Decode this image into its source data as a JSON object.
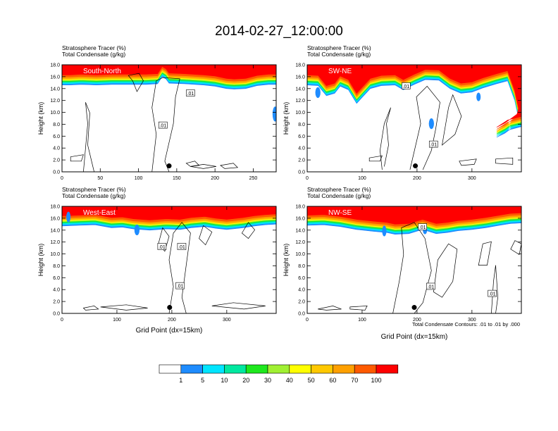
{
  "figure": {
    "title": "2014-02-27_12:00:00",
    "footnote": "Total Condensate Contours: .01 to .01 by .000"
  },
  "colors": {
    "tracer_levels": [
      "#ffffff",
      "#1e8cff",
      "#00e5ff",
      "#00e8a0",
      "#1ee81e",
      "#a0f032",
      "#ffff00",
      "#ffc800",
      "#ffa000",
      "#ff5a00",
      "#ff0000"
    ],
    "contour": "#000000"
  },
  "colorbar": {
    "labels": [
      "1",
      "5",
      "10",
      "20",
      "30",
      "40",
      "50",
      "60",
      "70",
      "100"
    ]
  },
  "chart_data": [
    {
      "type": "heatmap",
      "title_left_1": "Stratosphere Tracer   (%)",
      "title_left_2": "Total Condensate   (g/kg)",
      "region_label": "South-North",
      "xlabel": "",
      "ylabel": "Height (km)",
      "xlim": [
        0,
        280
      ],
      "ylim": [
        0,
        18
      ],
      "xticks": [
        0,
        50,
        100,
        150,
        200,
        250
      ],
      "yticks": [
        0,
        2,
        4,
        6,
        8,
        10,
        12,
        14,
        16,
        18
      ],
      "tropopause": [
        [
          0,
          14.6
        ],
        [
          10,
          14.6
        ],
        [
          25,
          14.7
        ],
        [
          45,
          14.6
        ],
        [
          65,
          14.7
        ],
        [
          90,
          14.7
        ],
        [
          110,
          14.7
        ],
        [
          125,
          14.8
        ],
        [
          131,
          16.0
        ],
        [
          136,
          15.6
        ],
        [
          140,
          14.9
        ],
        [
          160,
          14.8
        ],
        [
          185,
          14.6
        ],
        [
          200,
          14.4
        ],
        [
          215,
          14.0
        ],
        [
          225,
          13.9
        ],
        [
          240,
          14.0
        ],
        [
          255,
          14.5
        ],
        [
          270,
          14.7
        ],
        [
          280,
          14.7
        ]
      ],
      "contour_label_value": ".01",
      "contour_label_positions": [
        [
          168,
          13.2
        ],
        [
          132,
          7.8
        ]
      ],
      "marker": [
        140,
        1.0
      ]
    },
    {
      "type": "heatmap",
      "title_left_1": "Stratosphere Tracer   (%)",
      "title_left_2": "Total Condensate   (g/kg)",
      "region_label": "SW-NE",
      "xlabel": "",
      "ylabel": "Height (km)",
      "xlim": [
        0,
        390
      ],
      "ylim": [
        0,
        18
      ],
      "xticks": [
        0,
        100,
        200,
        300
      ],
      "yticks": [
        0,
        2,
        4,
        6,
        8,
        10,
        12,
        14,
        16,
        18
      ],
      "tropopause": [
        [
          0,
          14.6
        ],
        [
          20,
          14.5
        ],
        [
          35,
          12.8
        ],
        [
          50,
          13.2
        ],
        [
          60,
          14.4
        ],
        [
          75,
          13.8
        ],
        [
          90,
          11.5
        ],
        [
          100,
          12.5
        ],
        [
          115,
          14.0
        ],
        [
          135,
          14.5
        ],
        [
          160,
          14.6
        ],
        [
          175,
          13.8
        ],
        [
          195,
          14.7
        ],
        [
          215,
          15.5
        ],
        [
          240,
          15.4
        ],
        [
          260,
          14.0
        ],
        [
          280,
          13.2
        ],
        [
          300,
          13.4
        ],
        [
          320,
          14.1
        ],
        [
          345,
          14.8
        ],
        [
          365,
          15.3
        ],
        [
          378,
          12.0
        ],
        [
          385,
          9.0
        ],
        [
          382,
          8.0
        ],
        [
          360,
          6.5
        ],
        [
          345,
          5.8
        ],
        [
          365,
          7.0
        ],
        [
          390,
          7.6
        ]
      ],
      "contour_label_value": ".01",
      "contour_label_positions": [
        [
          180,
          14.4
        ],
        [
          230,
          4.6
        ]
      ],
      "marker": [
        197,
        1.0
      ]
    },
    {
      "type": "heatmap",
      "title_left_1": "Stratosphere Tracer   (%)",
      "title_left_2": "Total Condensate   (g/kg)",
      "region_label": "West-East",
      "xlabel": "Grid Point (dx=15km)",
      "ylabel": "Height (km)",
      "xlim": [
        0,
        390
      ],
      "ylim": [
        0,
        18
      ],
      "xticks": [
        0,
        100,
        200,
        300
      ],
      "yticks": [
        0,
        2,
        4,
        6,
        8,
        10,
        12,
        14,
        16,
        18
      ],
      "tropopause": [
        [
          0,
          14.7
        ],
        [
          30,
          14.8
        ],
        [
          60,
          14.9
        ],
        [
          90,
          14.4
        ],
        [
          110,
          14.5
        ],
        [
          130,
          14.2
        ],
        [
          160,
          14.0
        ],
        [
          190,
          14.2
        ],
        [
          215,
          14.1
        ],
        [
          235,
          14.4
        ],
        [
          260,
          14.6
        ],
        [
          280,
          14.3
        ],
        [
          300,
          14.1
        ],
        [
          330,
          14.4
        ],
        [
          350,
          14.7
        ],
        [
          370,
          14.9
        ],
        [
          390,
          15.0
        ]
      ],
      "contour_label_value": ".01",
      "contour_label_positions": [
        [
          182,
          11.2
        ],
        [
          218,
          11.2
        ],
        [
          215,
          4.6
        ]
      ],
      "marker": [
        196,
        1.0
      ]
    },
    {
      "type": "heatmap",
      "title_left_1": "Stratosphere Tracer   (%)",
      "title_left_2": "Total Condensate   (g/kg)",
      "region_label": "NW-SE",
      "xlabel": "Grid Point (dx=15km)",
      "ylabel": "Height (km)",
      "xlim": [
        0,
        390
      ],
      "ylim": [
        0,
        18
      ],
      "xticks": [
        0,
        100,
        200,
        300
      ],
      "yticks": [
        0,
        2,
        4,
        6,
        8,
        10,
        12,
        14,
        16,
        18
      ],
      "tropopause": [
        [
          0,
          14.8
        ],
        [
          30,
          14.9
        ],
        [
          60,
          14.6
        ],
        [
          90,
          14.1
        ],
        [
          120,
          13.8
        ],
        [
          145,
          13.6
        ],
        [
          160,
          13.3
        ],
        [
          185,
          13.4
        ],
        [
          210,
          14.1
        ],
        [
          235,
          13.4
        ],
        [
          255,
          13.6
        ],
        [
          275,
          13.9
        ],
        [
          300,
          14.1
        ],
        [
          325,
          14.4
        ],
        [
          350,
          14.8
        ],
        [
          370,
          15.1
        ],
        [
          390,
          15.2
        ]
      ],
      "contour_label_value": ".01",
      "contour_label_positions": [
        [
          210,
          14.5
        ],
        [
          225,
          4.5
        ],
        [
          337,
          3.3
        ]
      ],
      "marker": [
        195,
        1.0
      ]
    }
  ]
}
